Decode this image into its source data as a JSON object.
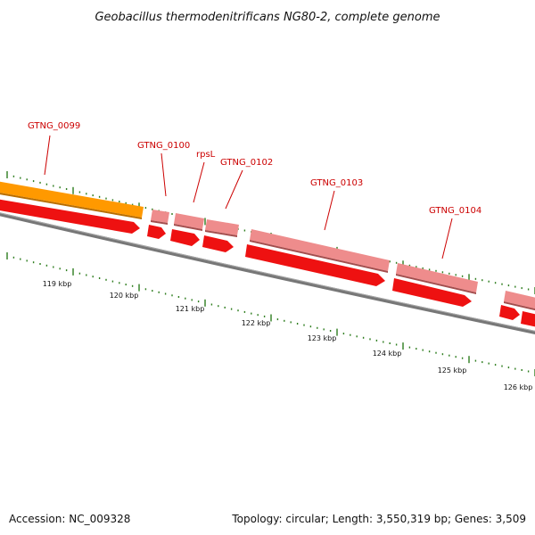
{
  "title": "Geobacillus thermodenitrificans NG80-2, complete genome",
  "footer": {
    "accession": "Accession: NC_009328",
    "topology": "Topology: circular; Length: 3,550,319 bp; Genes: 3,509"
  },
  "colors": {
    "gene_label": "#cc0000",
    "backbone": "#888888",
    "cds_feature": "#ee1111",
    "gene_feature": "#ee8c8c",
    "highlight_feature": "#ff9900",
    "tick": "#2e7d1e"
  },
  "genes": [
    {
      "label": "GTNG_0099"
    },
    {
      "label": "GTNG_0100"
    },
    {
      "label": "rpsL"
    },
    {
      "label": "GTNG_0102"
    },
    {
      "label": "GTNG_0103"
    },
    {
      "label": "GTNG_0104"
    }
  ],
  "kbp_ticks": [
    {
      "label": "119 kbp"
    },
    {
      "label": "120 kbp"
    },
    {
      "label": "121 kbp"
    },
    {
      "label": "122 kbp"
    },
    {
      "label": "123 kbp"
    },
    {
      "label": "124 kbp"
    },
    {
      "label": "125 kbp"
    },
    {
      "label": "126 kbp"
    }
  ]
}
